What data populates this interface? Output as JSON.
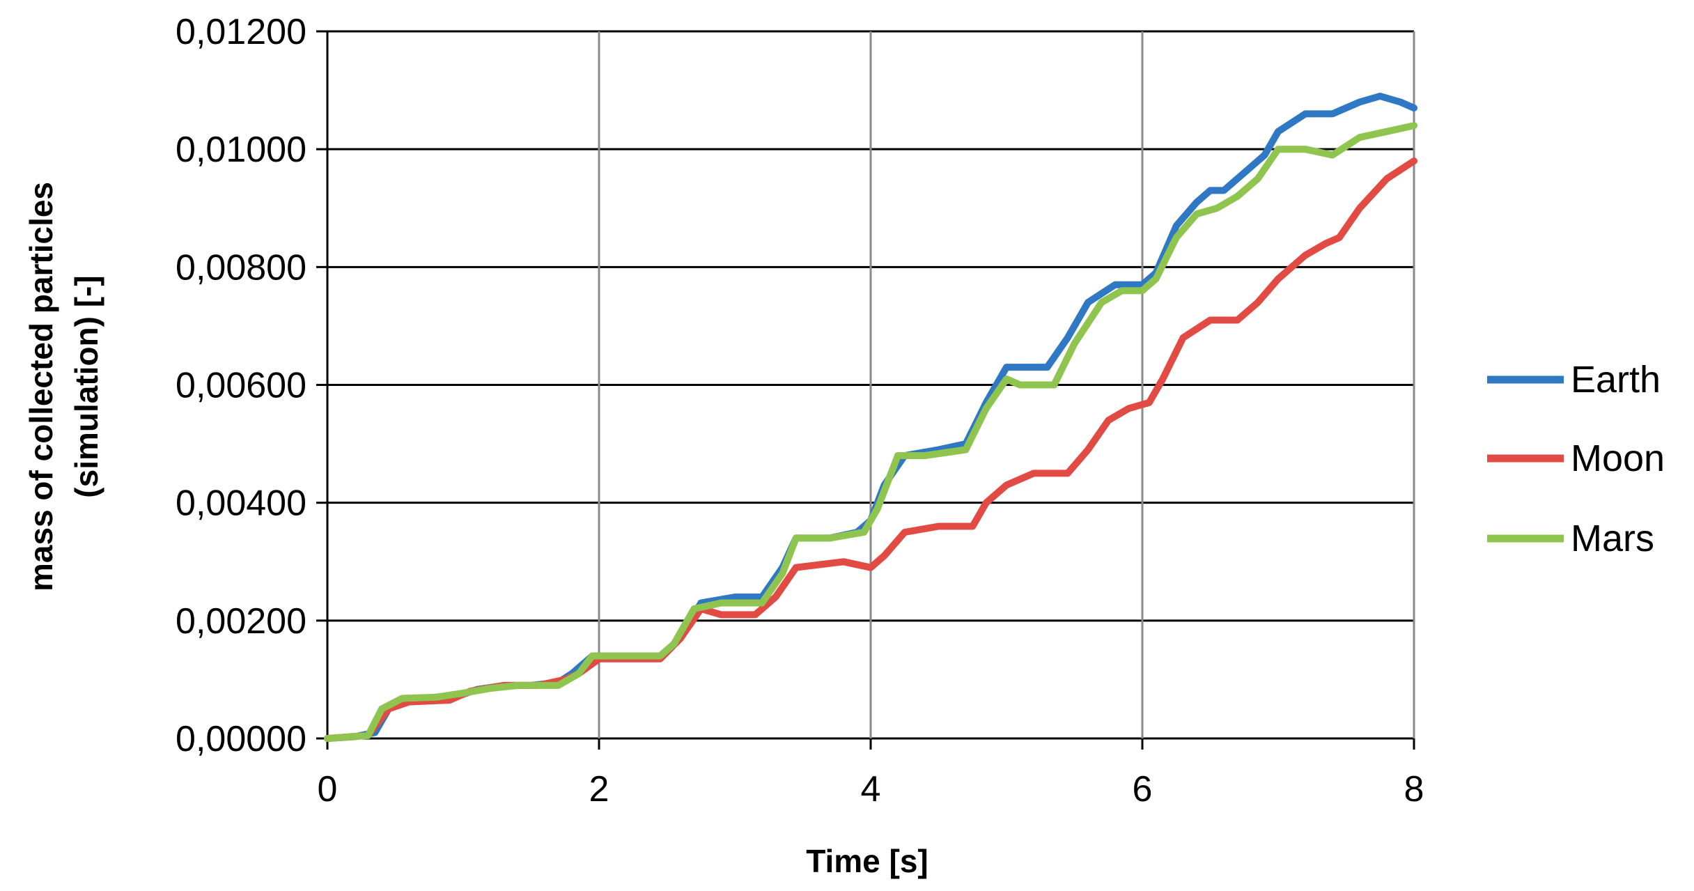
{
  "chart_data": {
    "type": "line",
    "title": "",
    "xlabel": "Time [s]",
    "ylabel_lines": [
      "mass of collected particles",
      "(simulation) [-]"
    ],
    "xlim": [
      0,
      8
    ],
    "ylim": [
      0,
      0.012
    ],
    "x_ticks": [
      0,
      2,
      4,
      6,
      8
    ],
    "x_tick_labels": [
      "0",
      "2",
      "4",
      "6",
      "8"
    ],
    "y_ticks": [
      0,
      0.002,
      0.004,
      0.006,
      0.008,
      0.01,
      0.012
    ],
    "y_tick_labels": [
      "0,00000",
      "0,00200",
      "0,00400",
      "0,00600",
      "0,00800",
      "0,01000",
      "0,01200"
    ],
    "grid": true,
    "legend_position": "right",
    "series": [
      {
        "name": "Earth",
        "color": "#2e78c4",
        "points": [
          [
            0,
            0
          ],
          [
            0.2,
            3e-05
          ],
          [
            0.35,
            0.0001
          ],
          [
            0.45,
            0.0005
          ],
          [
            0.55,
            0.00065
          ],
          [
            0.8,
            0.0007
          ],
          [
            1.0,
            0.00075
          ],
          [
            1.1,
            0.00083
          ],
          [
            1.3,
            0.0009
          ],
          [
            1.5,
            0.0009
          ],
          [
            1.7,
            0.00095
          ],
          [
            1.8,
            0.0011
          ],
          [
            1.95,
            0.0014
          ],
          [
            2.2,
            0.0014
          ],
          [
            2.45,
            0.0014
          ],
          [
            2.55,
            0.0016
          ],
          [
            2.7,
            0.0021
          ],
          [
            2.75,
            0.0023
          ],
          [
            3.0,
            0.0024
          ],
          [
            3.2,
            0.0024
          ],
          [
            3.35,
            0.0029
          ],
          [
            3.45,
            0.0034
          ],
          [
            3.7,
            0.0034
          ],
          [
            3.9,
            0.0035
          ],
          [
            4.0,
            0.0037
          ],
          [
            4.1,
            0.0043
          ],
          [
            4.25,
            0.0048
          ],
          [
            4.5,
            0.0049
          ],
          [
            4.7,
            0.005
          ],
          [
            4.85,
            0.0057
          ],
          [
            5.0,
            0.0063
          ],
          [
            5.3,
            0.0063
          ],
          [
            5.45,
            0.0068
          ],
          [
            5.6,
            0.0074
          ],
          [
            5.8,
            0.0077
          ],
          [
            6.0,
            0.0077
          ],
          [
            6.1,
            0.0079
          ],
          [
            6.25,
            0.0087
          ],
          [
            6.4,
            0.0091
          ],
          [
            6.5,
            0.0093
          ],
          [
            6.6,
            0.0093
          ],
          [
            6.75,
            0.0096
          ],
          [
            6.9,
            0.0099
          ],
          [
            7.0,
            0.0103
          ],
          [
            7.2,
            0.0106
          ],
          [
            7.4,
            0.0106
          ],
          [
            7.6,
            0.0108
          ],
          [
            7.75,
            0.0109
          ],
          [
            7.9,
            0.0108
          ],
          [
            8.0,
            0.0107
          ]
        ]
      },
      {
        "name": "Moon",
        "color": "#e24a44",
        "points": [
          [
            0,
            0
          ],
          [
            0.3,
            5e-05
          ],
          [
            0.45,
            0.0005
          ],
          [
            0.6,
            0.00062
          ],
          [
            0.9,
            0.00065
          ],
          [
            1.05,
            0.0008
          ],
          [
            1.3,
            0.0009
          ],
          [
            1.55,
            0.0009
          ],
          [
            1.75,
            0.001
          ],
          [
            1.85,
            0.0011
          ],
          [
            2.0,
            0.00135
          ],
          [
            2.45,
            0.00135
          ],
          [
            2.6,
            0.0017
          ],
          [
            2.75,
            0.0022
          ],
          [
            2.9,
            0.0021
          ],
          [
            3.15,
            0.0021
          ],
          [
            3.3,
            0.0024
          ],
          [
            3.45,
            0.0029
          ],
          [
            3.8,
            0.003
          ],
          [
            4.0,
            0.0029
          ],
          [
            4.1,
            0.0031
          ],
          [
            4.25,
            0.0035
          ],
          [
            4.5,
            0.0036
          ],
          [
            4.75,
            0.0036
          ],
          [
            4.85,
            0.004
          ],
          [
            5.0,
            0.0043
          ],
          [
            5.2,
            0.0045
          ],
          [
            5.45,
            0.0045
          ],
          [
            5.6,
            0.0049
          ],
          [
            5.75,
            0.0054
          ],
          [
            5.9,
            0.0056
          ],
          [
            6.05,
            0.0057
          ],
          [
            6.15,
            0.0061
          ],
          [
            6.3,
            0.0068
          ],
          [
            6.5,
            0.0071
          ],
          [
            6.7,
            0.0071
          ],
          [
            6.85,
            0.0074
          ],
          [
            7.0,
            0.0078
          ],
          [
            7.2,
            0.0082
          ],
          [
            7.35,
            0.0084
          ],
          [
            7.45,
            0.0085
          ],
          [
            7.6,
            0.009
          ],
          [
            7.8,
            0.0095
          ],
          [
            8.0,
            0.0098
          ]
        ]
      },
      {
        "name": "Mars",
        "color": "#8fc44e",
        "points": [
          [
            0,
            0
          ],
          [
            0.3,
            5e-05
          ],
          [
            0.4,
            0.0005
          ],
          [
            0.55,
            0.00068
          ],
          [
            0.8,
            0.0007
          ],
          [
            1.0,
            0.00077
          ],
          [
            1.2,
            0.00085
          ],
          [
            1.4,
            0.0009
          ],
          [
            1.7,
            0.0009
          ],
          [
            1.85,
            0.0011
          ],
          [
            1.95,
            0.0014
          ],
          [
            2.2,
            0.0014
          ],
          [
            2.45,
            0.0014
          ],
          [
            2.55,
            0.0016
          ],
          [
            2.7,
            0.0022
          ],
          [
            2.9,
            0.0023
          ],
          [
            3.2,
            0.0023
          ],
          [
            3.35,
            0.0028
          ],
          [
            3.45,
            0.0034
          ],
          [
            3.7,
            0.0034
          ],
          [
            3.95,
            0.0035
          ],
          [
            4.05,
            0.0039
          ],
          [
            4.2,
            0.0048
          ],
          [
            4.4,
            0.0048
          ],
          [
            4.7,
            0.0049
          ],
          [
            4.85,
            0.0056
          ],
          [
            5.0,
            0.0061
          ],
          [
            5.1,
            0.006
          ],
          [
            5.35,
            0.006
          ],
          [
            5.5,
            0.0067
          ],
          [
            5.7,
            0.0074
          ],
          [
            5.85,
            0.0076
          ],
          [
            6.0,
            0.0076
          ],
          [
            6.1,
            0.0078
          ],
          [
            6.25,
            0.0085
          ],
          [
            6.4,
            0.0089
          ],
          [
            6.55,
            0.009
          ],
          [
            6.7,
            0.0092
          ],
          [
            6.85,
            0.0095
          ],
          [
            7.0,
            0.01
          ],
          [
            7.2,
            0.01
          ],
          [
            7.4,
            0.0099
          ],
          [
            7.6,
            0.0102
          ],
          [
            7.8,
            0.0103
          ],
          [
            8.0,
            0.0104
          ]
        ]
      }
    ]
  }
}
